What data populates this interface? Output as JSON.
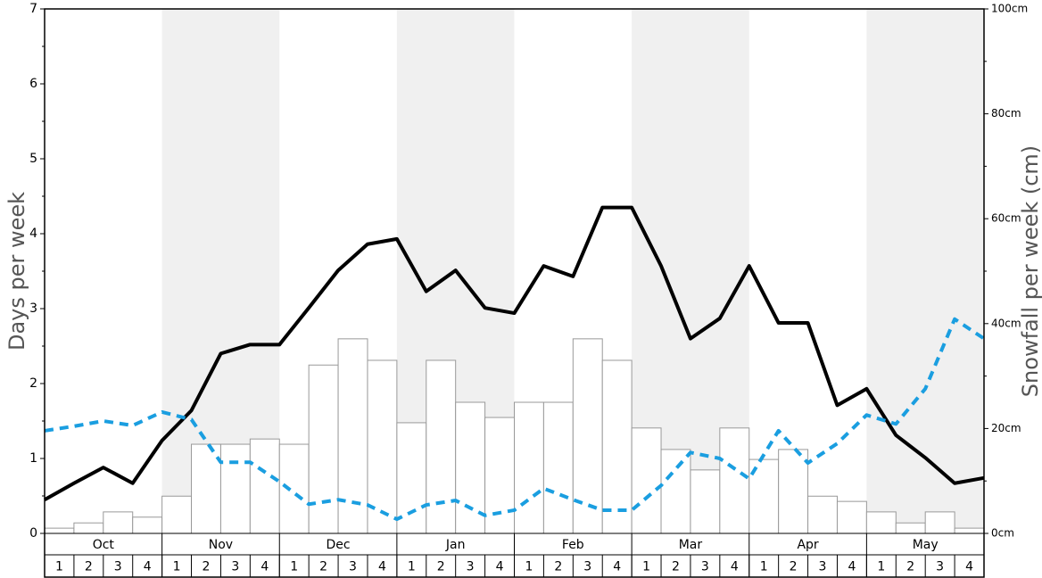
{
  "chart_data": {
    "type": "bar",
    "months": [
      "Oct",
      "Nov",
      "Dec",
      "Jan",
      "Feb",
      "Mar",
      "Apr",
      "May"
    ],
    "categories": [
      "1",
      "2",
      "3",
      "4",
      "1",
      "2",
      "3",
      "4",
      "1",
      "2",
      "3",
      "4",
      "1",
      "2",
      "3",
      "4",
      "1",
      "2",
      "3",
      "4",
      "1",
      "2",
      "3",
      "4",
      "1",
      "2",
      "3",
      "4",
      "1",
      "2",
      "3",
      "4"
    ],
    "y_label": "Days per week",
    "y2_label": "Snowfall per week (cm)",
    "ylim": [
      0,
      7
    ],
    "yticks": [
      0,
      1,
      2,
      3,
      4,
      5,
      6,
      7
    ],
    "yticks_minor": [
      0.5,
      1.5,
      2.5,
      3.5,
      4.5,
      5.5,
      6.5
    ],
    "y2lim": [
      0,
      100
    ],
    "y2ticks": [
      {
        "value": 0,
        "label": "0cm"
      },
      {
        "value": 20,
        "label": "20cm"
      },
      {
        "value": 40,
        "label": "40cm"
      },
      {
        "value": 60,
        "label": "60cm"
      },
      {
        "value": 80,
        "label": "80cm"
      },
      {
        "value": 100,
        "label": "100cm"
      }
    ],
    "y2ticks_minor": [
      10,
      30,
      50,
      70,
      90
    ],
    "band_color": "#f0f0f0",
    "xlim": [
      0,
      32
    ],
    "series": [
      {
        "type": "bar",
        "axis": "y2",
        "color": "#ffffff",
        "values": [
          1.0,
          2.0,
          4.1,
          3.1,
          7.1,
          17.0,
          17.0,
          18.0,
          17.0,
          32.1,
          37.1,
          33.0,
          21.1,
          33.0,
          25.0,
          22.1,
          25.0,
          25.0,
          37.1,
          33.0,
          20.1,
          16.0,
          12.1,
          20.1,
          14.1,
          16.0,
          7.1,
          6.1,
          4.1,
          2.0,
          4.1,
          1.0
        ]
      },
      {
        "type": "line",
        "color": "#000000",
        "dash": false,
        "x": [
          0,
          1,
          2,
          3,
          4,
          5,
          6,
          7,
          8,
          9,
          10,
          11,
          12,
          13,
          14,
          15,
          16,
          17,
          18,
          19,
          20,
          21,
          22,
          23,
          24,
          25,
          26,
          27,
          28,
          29,
          30,
          31,
          32
        ],
        "values": [
          0.45,
          0.67,
          0.88,
          0.67,
          1.24,
          1.64,
          2.4,
          2.52,
          2.52,
          3.01,
          3.51,
          3.86,
          3.93,
          3.23,
          3.51,
          3.01,
          2.94,
          3.57,
          3.43,
          4.35,
          4.35,
          3.57,
          2.6,
          2.87,
          3.57,
          2.81,
          2.81,
          1.71,
          1.93,
          1.31,
          1.01,
          0.67,
          0.74
        ]
      },
      {
        "type": "line",
        "color": "#1a9ee0",
        "dash": true,
        "x": [
          0,
          1,
          2,
          3,
          4,
          5,
          6,
          7,
          8,
          9,
          10,
          11,
          12,
          13,
          14,
          15,
          16,
          17,
          18,
          19,
          20,
          21,
          22,
          23,
          24,
          25,
          26,
          27,
          28,
          29,
          30,
          31,
          32
        ],
        "values": [
          1.37,
          1.43,
          1.5,
          1.44,
          1.62,
          1.52,
          0.95,
          0.95,
          0.69,
          0.39,
          0.45,
          0.38,
          0.19,
          0.38,
          0.44,
          0.24,
          0.31,
          0.6,
          0.45,
          0.31,
          0.31,
          0.64,
          1.08,
          1.0,
          0.73,
          1.37,
          0.94,
          1.2,
          1.58,
          1.46,
          1.93,
          2.86,
          2.6
        ]
      }
    ]
  }
}
